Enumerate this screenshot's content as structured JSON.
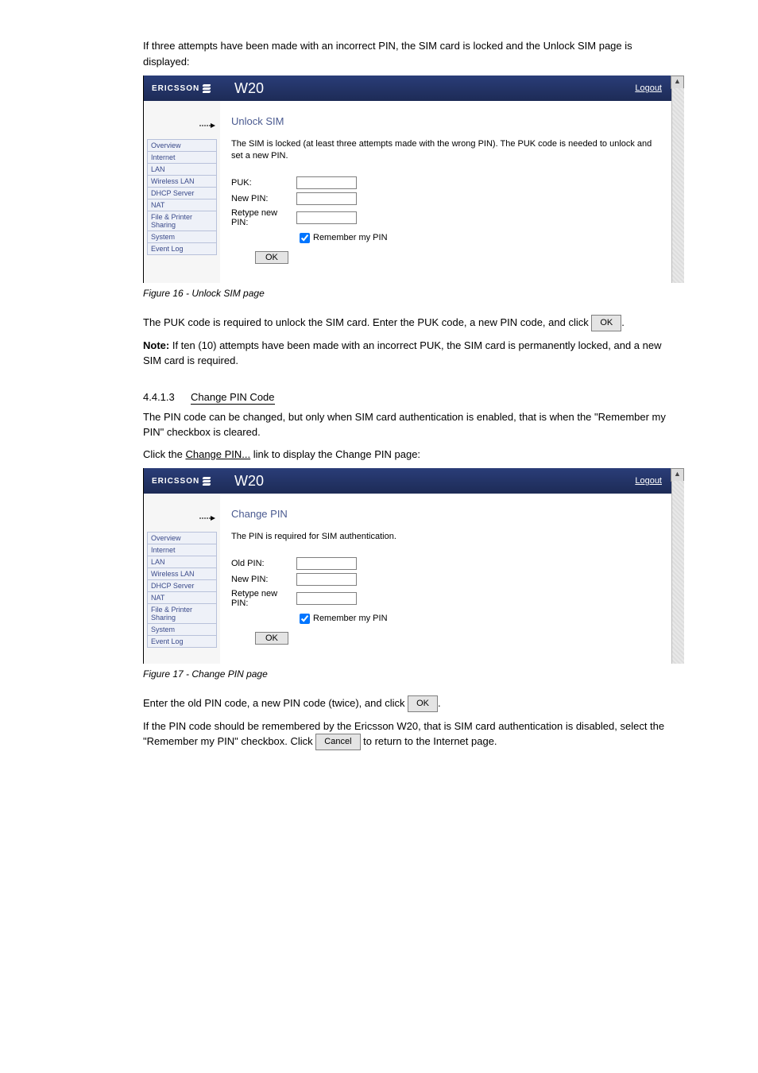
{
  "pre_text_lines": [
    "If three attempts have been made with an incorrect PIN, the SIM card is locked and the Unlock SIM page is displayed:"
  ],
  "screenshot1": {
    "logo_brand": "ERICSSON",
    "model": "W20",
    "logout": "Logout",
    "nav_items": [
      "Overview",
      "Internet",
      "LAN",
      "Wireless LAN",
      "DHCP Server",
      "NAT",
      "File & Printer Sharing",
      "System",
      "Event Log"
    ],
    "heading": "Unlock SIM",
    "description": "The SIM is locked (at least three attempts made with the wrong PIN). The PUK code is needed to unlock and set a new PIN.",
    "fields": [
      {
        "label": "PUK:"
      },
      {
        "label": "New PIN:"
      },
      {
        "label": "Retype new PIN:"
      }
    ],
    "checkbox_label": "Remember my PIN",
    "ok": "OK"
  },
  "fig1_caption": "Figure 16 - Unlock SIM page",
  "para1_lines": [
    "The PUK code is required to unlock the SIM card. Enter the PUK code, a new PIN code, and click"
  ],
  "para1_btn": "OK",
  "para1_after": ".",
  "note_label": "Note:",
  "note_text": " If ten (10) attempts have been made with an incorrect PUK, the SIM card is permanently locked, and a new SIM card is required.",
  "section": {
    "num": "4.4.1.3",
    "title": "Change PIN Code"
  },
  "para2": "The PIN code can be changed, but only when SIM card authentication is enabled, that is when the \"Remember my PIN\" checkbox is cleared.",
  "para3_a": "Click the ",
  "para3_link": "Change PIN...",
  "para3_b": " link to display the Change PIN page:",
  "screenshot2": {
    "logo_brand": "ERICSSON",
    "model": "W20",
    "logout": "Logout",
    "nav_items": [
      "Overview",
      "Internet",
      "LAN",
      "Wireless LAN",
      "DHCP Server",
      "NAT",
      "File & Printer Sharing",
      "System",
      "Event Log"
    ],
    "heading": "Change PIN",
    "description": "The PIN is required for SIM authentication.",
    "fields": [
      {
        "label": "Old PIN:"
      },
      {
        "label": "New PIN:"
      },
      {
        "label": "Retype new PIN:"
      }
    ],
    "checkbox_label": "Remember my PIN",
    "ok": "OK"
  },
  "fig2_caption": "Figure 17 - Change PIN page",
  "para4_a": "Enter the old PIN code, a new PIN code (twice), and click ",
  "para4_btn": "OK",
  "para4_b": ".",
  "para5_a": "If the PIN code should be remembered by the Ericsson W20, that is SIM card authentication is disabled, select the \"Remember my PIN\" checkbox. Click ",
  "para5_btn": "Cancel",
  "para5_b": " to return to the Internet page.",
  "colors": {
    "header_gradient_top": "#2a3d78",
    "header_gradient_bottom": "#1d2b56",
    "nav_bg": "#eef1f8",
    "nav_border": "#b8c1da",
    "nav_text": "#3a4a8a",
    "heading_color": "#4a5a90",
    "btn_bg": "#e4e4e4",
    "btn_border": "#7f7f7f"
  }
}
